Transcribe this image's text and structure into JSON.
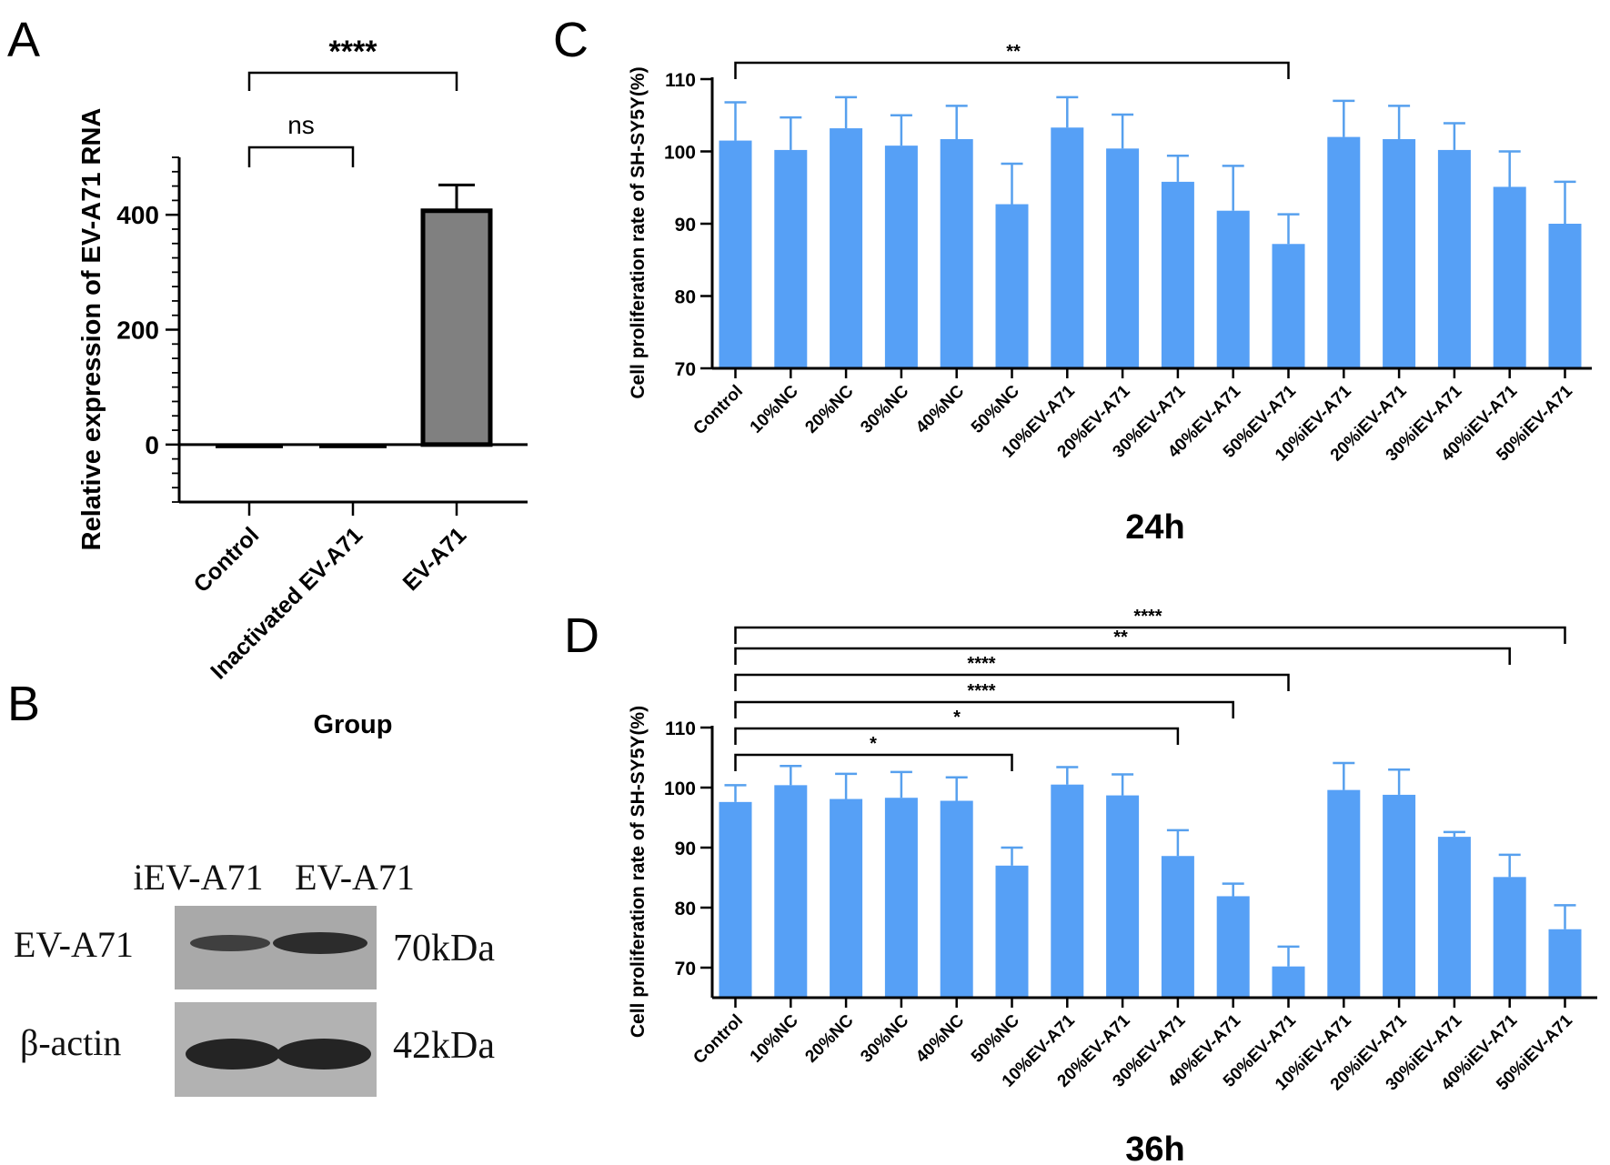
{
  "panels": {
    "a": "A",
    "b": "B",
    "c": "C",
    "d": "D"
  },
  "chart_data": [
    {
      "id": "A",
      "type": "bar",
      "categories": [
        "Control",
        "Inactivated EV-A71",
        "EV-A71"
      ],
      "values": [
        -3,
        -3,
        407
      ],
      "errors": [
        0,
        0,
        45
      ],
      "ylabel": "Relative expression of EV-A71 RNA",
      "xlabel": "Group",
      "ylim": [
        -100,
        500
      ],
      "yticks": [
        0,
        200,
        400
      ],
      "bar_color": "#808080",
      "significance": [
        {
          "from": 0,
          "to": 1,
          "label": "ns"
        },
        {
          "from": 0,
          "to": 2,
          "label": "****"
        }
      ]
    },
    {
      "id": "C",
      "type": "bar",
      "title": "24h",
      "categories": [
        "Control",
        "10%NC",
        "20%NC",
        "30%NC",
        "40%NC",
        "50%NC",
        "10%EV-A71",
        "20%EV-A71",
        "30%EV-A71",
        "40%EV-A71",
        "50%EV-A71",
        "10%iEV-A71",
        "20%iEV-A71",
        "30%iEV-A71",
        "40%iEV-A71",
        "50%iEV-A71"
      ],
      "values": [
        101.5,
        100.2,
        103.2,
        100.8,
        101.7,
        92.7,
        103.3,
        100.4,
        95.8,
        91.8,
        87.2,
        102.0,
        101.7,
        100.2,
        95.1,
        90.0
      ],
      "errors": [
        5.3,
        4.5,
        4.3,
        4.2,
        4.6,
        5.6,
        4.2,
        4.7,
        3.6,
        6.2,
        4.1,
        5.0,
        4.6,
        3.7,
        4.9,
        5.8
      ],
      "ylabel": "Cell proliferation rate of SH-SY5Y(%)",
      "ylim": [
        70,
        110
      ],
      "yticks": [
        70,
        80,
        90,
        100,
        110
      ],
      "bar_color": "#56a0f6",
      "significance": [
        {
          "from": 0,
          "to": 10,
          "label": "**"
        }
      ]
    },
    {
      "id": "D",
      "type": "bar",
      "title": "36h",
      "categories": [
        "Control",
        "10%NC",
        "20%NC",
        "30%NC",
        "40%NC",
        "50%NC",
        "10%EV-A71",
        "20%EV-A71",
        "30%EV-A71",
        "40%EV-A71",
        "50%EV-A71",
        "10%iEV-A71",
        "20%iEV-A71",
        "30%iEV-A71",
        "40%iEV-A71",
        "50%iEV-A71"
      ],
      "values": [
        97.6,
        100.4,
        98.1,
        98.3,
        97.8,
        87.0,
        100.5,
        98.7,
        88.6,
        81.9,
        70.2,
        99.6,
        98.8,
        91.8,
        85.1,
        76.4
      ],
      "errors": [
        2.8,
        3.2,
        4.2,
        4.3,
        3.9,
        3.0,
        2.9,
        3.5,
        4.3,
        2.1,
        3.3,
        4.5,
        4.2,
        0.8,
        3.7,
        4.0
      ],
      "ylabel": "Cell proliferation rate of SH-SY5Y(%)",
      "ylim": [
        65,
        110
      ],
      "yticks": [
        70,
        80,
        90,
        100,
        110
      ],
      "bar_color": "#56a0f6",
      "significance": [
        {
          "from": 0,
          "to": 5,
          "label": "*"
        },
        {
          "from": 0,
          "to": 8,
          "label": "*"
        },
        {
          "from": 0,
          "to": 9,
          "label": "****"
        },
        {
          "from": 0,
          "to": 10,
          "label": "****"
        },
        {
          "from": 0,
          "to": 14,
          "label": "**"
        },
        {
          "from": 0,
          "to": 15,
          "label": "****"
        }
      ]
    }
  ],
  "western_blot": {
    "lanes": [
      "iEV-A71",
      "EV-A71"
    ],
    "rows": [
      {
        "protein": "EV-A71",
        "size": "70kDa"
      },
      {
        "protein": "β-actin",
        "size": "42kDa"
      }
    ]
  }
}
